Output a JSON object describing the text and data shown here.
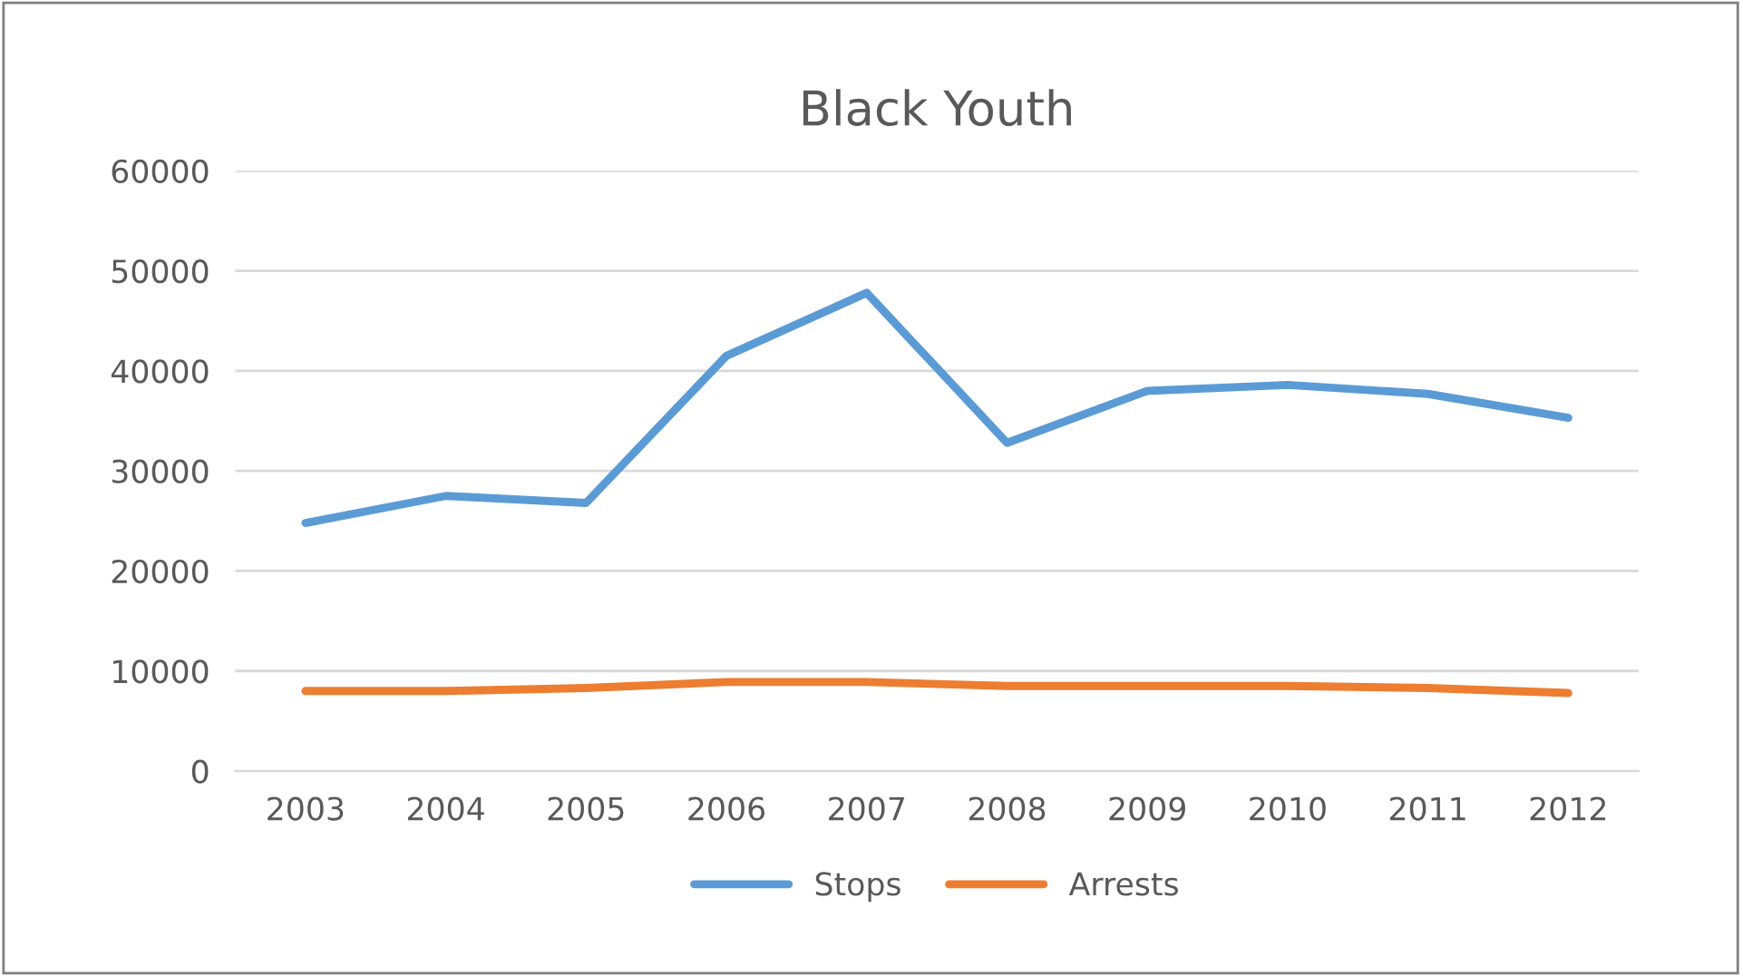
{
  "chart_data": {
    "type": "line",
    "title": "Black Youth",
    "categories": [
      "2003",
      "2004",
      "2005",
      "2006",
      "2007",
      "2008",
      "2009",
      "2010",
      "2011",
      "2012"
    ],
    "series": [
      {
        "name": "Stops",
        "color": "#5b9bd5",
        "values": [
          24800,
          27500,
          26800,
          41500,
          47800,
          32800,
          38000,
          38600,
          37700,
          35300
        ]
      },
      {
        "name": "Arrests",
        "color": "#ed7d31",
        "values": [
          8000,
          8000,
          8300,
          8900,
          8900,
          8500,
          8500,
          8500,
          8300,
          7800
        ]
      }
    ],
    "ylim": [
      0,
      60000
    ],
    "yticks": [
      0,
      10000,
      20000,
      30000,
      40000,
      50000,
      60000
    ],
    "grid": "y",
    "legend": "bottom",
    "marker": "none",
    "line_style": "solid"
  }
}
